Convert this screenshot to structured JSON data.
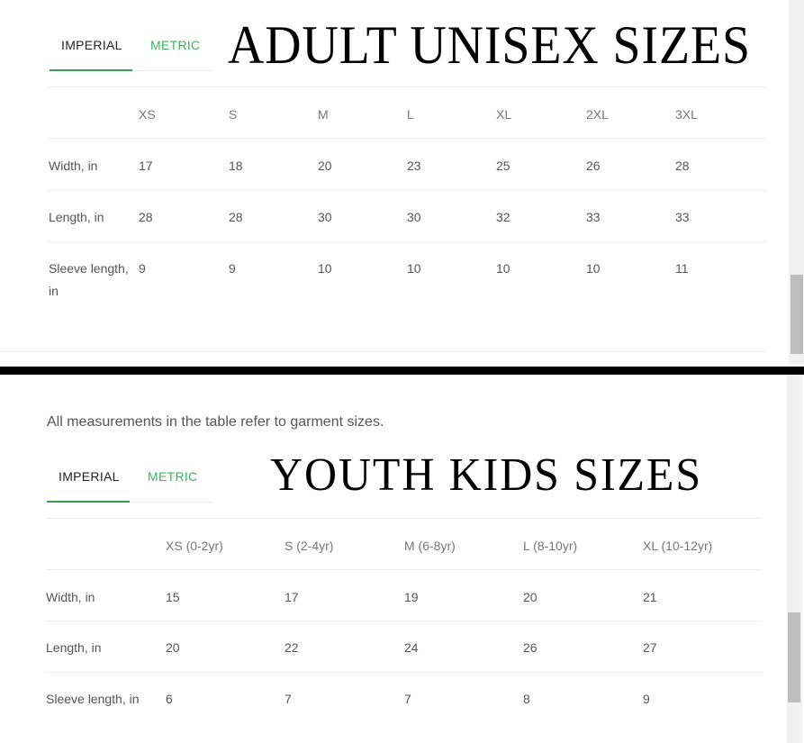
{
  "adult": {
    "title": "ADULT UNISEX SIZES",
    "tabs": [
      {
        "label": "IMPERIAL",
        "active": true
      },
      {
        "label": "METRIC",
        "active": false
      }
    ],
    "headers": [
      "",
      "XS",
      "S",
      "M",
      "L",
      "XL",
      "2XL",
      "3XL"
    ],
    "rows": [
      {
        "label": "Width, in",
        "values": [
          "17",
          "18",
          "20",
          "23",
          "25",
          "26",
          "28"
        ]
      },
      {
        "label": "Length, in",
        "values": [
          "28",
          "28",
          "30",
          "30",
          "32",
          "33",
          "33"
        ]
      },
      {
        "label": "Sleeve length, in",
        "values": [
          "9",
          "9",
          "10",
          "10",
          "10",
          "10",
          "11"
        ]
      }
    ]
  },
  "youth": {
    "note": "All measurements in the table refer to garment sizes.",
    "title": "YOUTH KIDS SIZES",
    "tabs": [
      {
        "label": "IMPERIAL",
        "active": true
      },
      {
        "label": "METRIC",
        "active": false
      }
    ],
    "headers": [
      "",
      "XS (0-2yr)",
      "S (2-4yr)",
      "M (6-8yr)",
      "L (8-10yr)",
      "XL (10-12yr)"
    ],
    "rows": [
      {
        "label": "Width, in",
        "values": [
          "15",
          "17",
          "19",
          "20",
          "21"
        ]
      },
      {
        "label": "Length, in",
        "values": [
          "20",
          "22",
          "24",
          "26",
          "27"
        ]
      },
      {
        "label": "Sleeve length, in",
        "values": [
          "6",
          "7",
          "7",
          "8",
          "9"
        ]
      }
    ]
  },
  "colors": {
    "accent": "#3cb460",
    "divider": "#000000"
  }
}
